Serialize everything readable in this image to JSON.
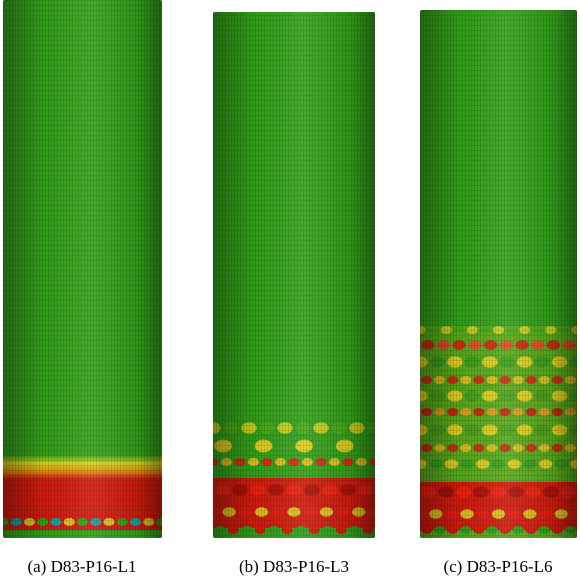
{
  "panels": [
    {
      "caption": "(a) D83-P16-L1"
    },
    {
      "caption": "(b) D83-P16-L3"
    },
    {
      "caption": "(c) D83-P16-L6"
    }
  ]
}
